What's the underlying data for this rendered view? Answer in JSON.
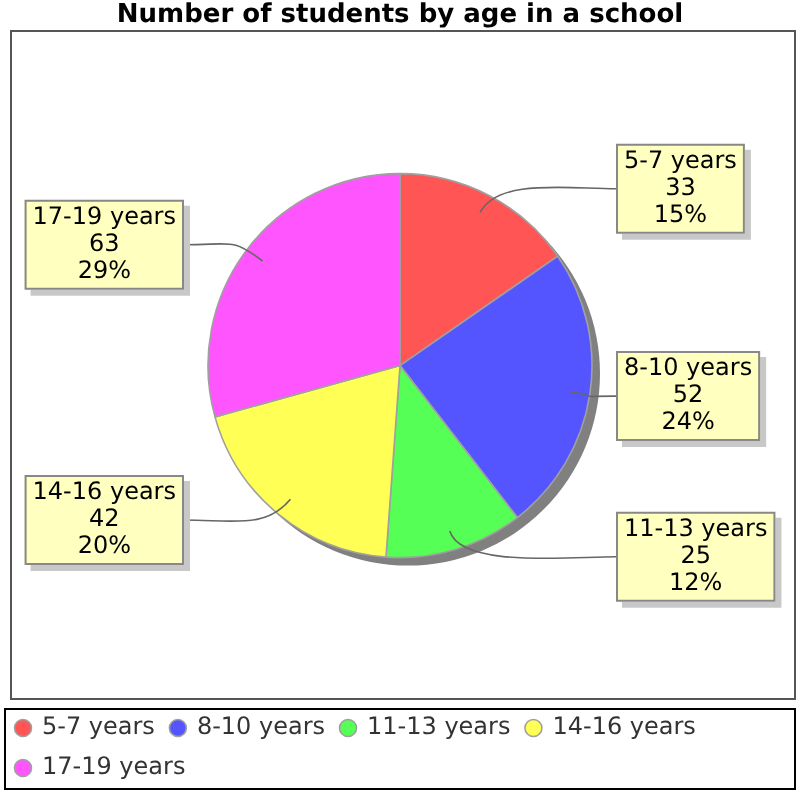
{
  "chart_data": {
    "type": "pie",
    "title": "Number of students by age in a school",
    "categories": [
      "5-7 years",
      "8-10 years",
      "11-13 years",
      "14-16 years",
      "17-19 years"
    ],
    "values": [
      33,
      52,
      25,
      42,
      63
    ],
    "colors": [
      "#ff5555",
      "#5555ff",
      "#55ff55",
      "#ffff55",
      "#ff55ff"
    ],
    "value_labels": [
      "33\n15%",
      "52\n24%",
      "25\n12%",
      "42\n20%",
      "63\n29%"
    ],
    "legend": "bottom"
  }
}
